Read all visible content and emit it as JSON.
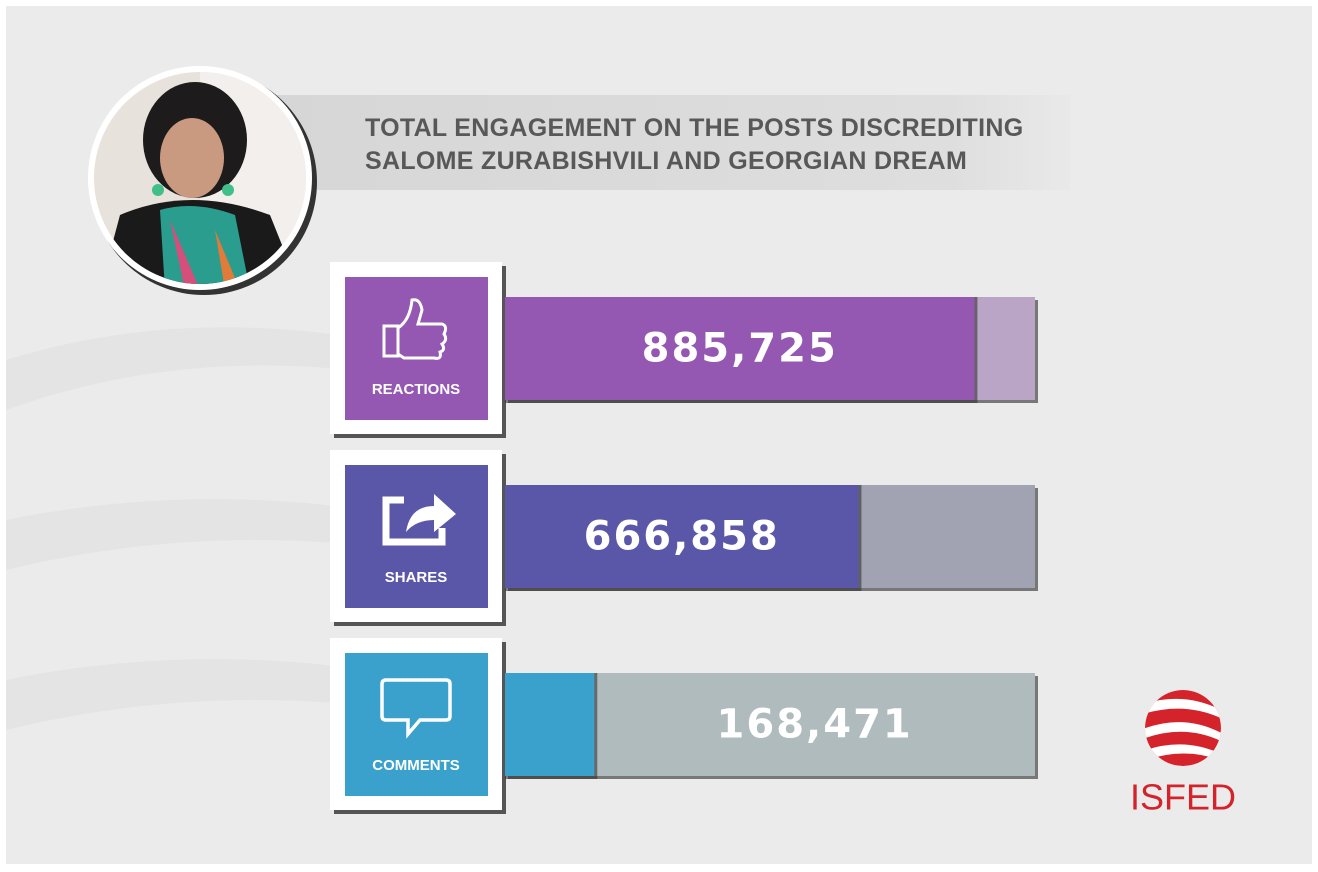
{
  "chart_data": {
    "type": "bar",
    "orientation": "horizontal",
    "title": "TOTAL ENGAGEMENT ON THE POSTS DISCREDITING SALOME ZURABISHVILI AND GEORGIAN DREAM",
    "categories": [
      "REACTIONS",
      "SHARES",
      "COMMENTS"
    ],
    "values": [
      885725,
      666858,
      168471
    ],
    "value_labels": [
      "885,725",
      "666,858",
      "168,471"
    ],
    "colors": [
      "#9558b2",
      "#5b57a8",
      "#3aa0cc"
    ],
    "track_colors": [
      "#bba5c6",
      "#a1a3b3",
      "#afbbbd"
    ],
    "xlim": [
      0,
      1000000
    ]
  },
  "logo": "ISFED"
}
